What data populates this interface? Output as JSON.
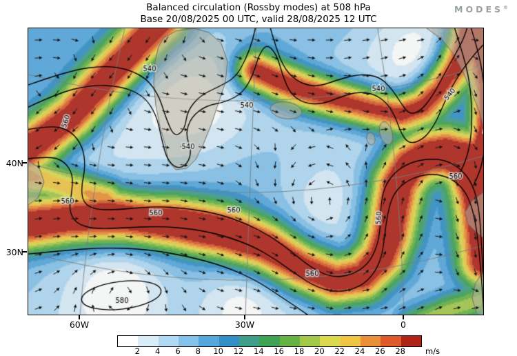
{
  "header": {
    "title": "Balanced circulation (Rossby modes) at 508 hPa",
    "subtitle": "Base 20/08/2025 00 UTC, valid 28/08/2025 12 UTC",
    "logo": "MODES",
    "logo_mark": "®"
  },
  "axes": {
    "lat_labels": [
      "40N",
      "30N"
    ],
    "lon_labels": [
      "60W",
      "30W",
      "0"
    ]
  },
  "contours": {
    "labels": {
      "h540": "540",
      "h560": "560",
      "h580": "580"
    },
    "levels_dam": [
      540,
      560,
      580
    ],
    "variable": "geopotential height"
  },
  "colorbar": {
    "ticks": [
      "2",
      "4",
      "6",
      "8",
      "10",
      "12",
      "14",
      "16",
      "18",
      "20",
      "22",
      "24",
      "26",
      "28"
    ],
    "unit": "m/s",
    "colors": [
      "#ffffff",
      "#d9edf9",
      "#b0d9f3",
      "#84c2ea",
      "#55a7dc",
      "#3390c7",
      "#3f9e8a",
      "#3ea254",
      "#66b345",
      "#a3c84a",
      "#dcd94e",
      "#f0c544",
      "#ea9038",
      "#dd5b2b",
      "#b02418"
    ]
  },
  "chart_data": {
    "type": "heatmap",
    "title": "Balanced circulation (Rossby modes) at 508 hPa",
    "subtitle": "Base 20/08/2025 00 UTC, valid 28/08/2025 12 UTC",
    "base_time": "20/08/2025 00 UTC",
    "valid_time": "28/08/2025 12 UTC",
    "level_hPa": 508,
    "field": "balanced wind speed (shaded) with wind direction arrows",
    "unit": "m/s",
    "colorbar_levels": [
      2,
      4,
      6,
      8,
      10,
      12,
      14,
      16,
      18,
      20,
      22,
      24,
      26,
      28
    ],
    "contour_field": "geopotential height (dam)",
    "contour_levels": [
      540,
      560,
      580
    ],
    "x_tick_labels": [
      "60W",
      "30W",
      "0"
    ],
    "y_tick_labels": [
      "40N",
      "30N"
    ],
    "region": "North Atlantic and Europe",
    "legend_position": "bottom"
  }
}
